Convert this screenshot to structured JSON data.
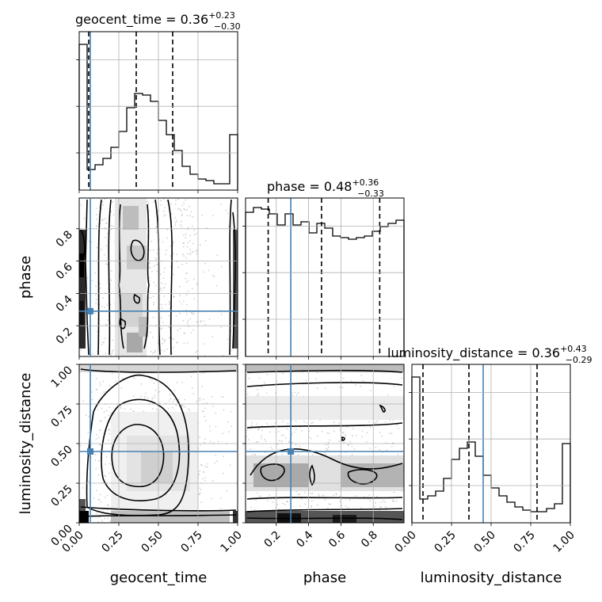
{
  "chart_data": {
    "type": "corner",
    "parameters": [
      "geocent_time",
      "phase",
      "luminosity_distance"
    ],
    "titles": [
      {
        "param": "geocent_time",
        "label": "geocent_time = 0.36",
        "plus": "+0.23",
        "minus": "−0.30"
      },
      {
        "param": "phase",
        "label": "phase = 0.48",
        "plus": "+0.36",
        "minus": "−0.33"
      },
      {
        "param": "luminosity_distance",
        "label": "luminosity_distance = 0.36",
        "plus": "+0.43",
        "minus": "−0.29"
      }
    ],
    "ranges": {
      "geocent_time": [
        0,
        1
      ],
      "phase": [
        0.01,
        0.99
      ],
      "luminosity_distance": [
        0,
        1
      ]
    },
    "truths": {
      "geocent_time": 0.07,
      "phase": 0.29,
      "luminosity_distance": 0.45
    },
    "quantiles": {
      "geocent_time": [
        0.06,
        0.36,
        0.59
      ],
      "phase": [
        0.15,
        0.48,
        0.84
      ],
      "luminosity_distance": [
        0.07,
        0.36,
        0.79
      ]
    },
    "histograms": {
      "geocent_time": [
        0.92,
        0.13,
        0.16,
        0.2,
        0.27,
        0.37,
        0.52,
        0.61,
        0.6,
        0.56,
        0.44,
        0.35,
        0.25,
        0.15,
        0.1,
        0.07,
        0.06,
        0.04,
        0.04,
        0.35
      ],
      "phase": [
        0.91,
        0.94,
        0.93,
        0.9,
        0.83,
        0.9,
        0.83,
        0.85,
        0.78,
        0.84,
        0.81,
        0.76,
        0.75,
        0.74,
        0.75,
        0.76,
        0.79,
        0.82,
        0.84,
        0.86
      ],
      "luminosity_distance": [
        0.92,
        0.15,
        0.17,
        0.2,
        0.28,
        0.4,
        0.47,
        0.51,
        0.42,
        0.3,
        0.22,
        0.17,
        0.13,
        0.1,
        0.08,
        0.07,
        0.07,
        0.09,
        0.12,
        0.5
      ]
    },
    "ticks": {
      "geocent_time": [
        "0.00",
        "0.25",
        "0.50",
        "0.75",
        "1.00"
      ],
      "phase": [
        "0.2",
        "0.4",
        "0.6",
        "0.8"
      ],
      "luminosity_distance": [
        "0.00",
        "0.25",
        "0.50",
        "0.75",
        "1.00"
      ]
    },
    "axis_labels": {
      "geocent_time": "geocent_time",
      "phase": "phase",
      "luminosity_distance": "luminosity_distance"
    }
  }
}
